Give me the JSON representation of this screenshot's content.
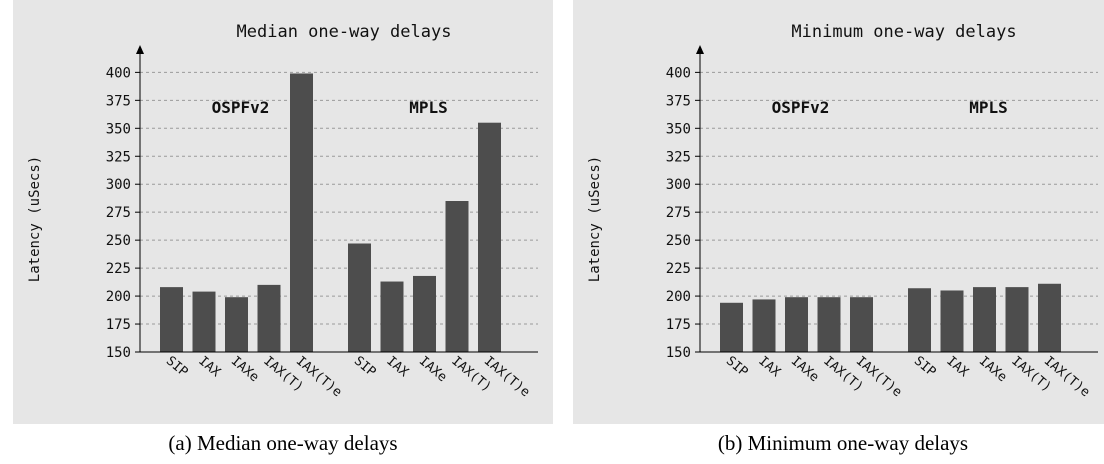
{
  "chart_data": [
    {
      "type": "bar",
      "title": "Median one-way delays",
      "ylabel": "Latency (uSecs)",
      "xlabel": "",
      "ylim": [
        150,
        420
      ],
      "yticks": [
        150,
        175,
        200,
        225,
        250,
        275,
        300,
        325,
        350,
        375,
        400
      ],
      "grid": true,
      "groups": [
        {
          "name": "OSPFv2",
          "categories": [
            "SIP",
            "IAX",
            "IAXe",
            "IAX(T)",
            "IAX(T)e"
          ],
          "values": [
            208,
            204,
            199,
            210,
            399
          ]
        },
        {
          "name": "MPLS",
          "categories": [
            "SIP",
            "IAX",
            "IAXe",
            "IAX(T)",
            "IAX(T)e"
          ],
          "values": [
            247,
            213,
            218,
            285,
            355
          ]
        }
      ],
      "bar_color": "#4d4d4d"
    },
    {
      "type": "bar",
      "title": "Minimum one-way delays",
      "ylabel": "Latency (uSecs)",
      "xlabel": "",
      "ylim": [
        150,
        420
      ],
      "yticks": [
        150,
        175,
        200,
        225,
        250,
        275,
        300,
        325,
        350,
        375,
        400
      ],
      "grid": true,
      "groups": [
        {
          "name": "OSPFv2",
          "categories": [
            "SIP",
            "IAX",
            "IAXe",
            "IAX(T)",
            "IAX(T)e"
          ],
          "values": [
            194,
            197,
            199,
            199,
            199
          ]
        },
        {
          "name": "MPLS",
          "categories": [
            "SIP",
            "IAX",
            "IAXe",
            "IAX(T)",
            "IAX(T)e"
          ],
          "values": [
            207,
            205,
            208,
            208,
            211
          ]
        }
      ],
      "bar_color": "#4d4d4d"
    }
  ],
  "captions": [
    "(a) Median one-way delays",
    "(b) Minimum one-way delays"
  ]
}
